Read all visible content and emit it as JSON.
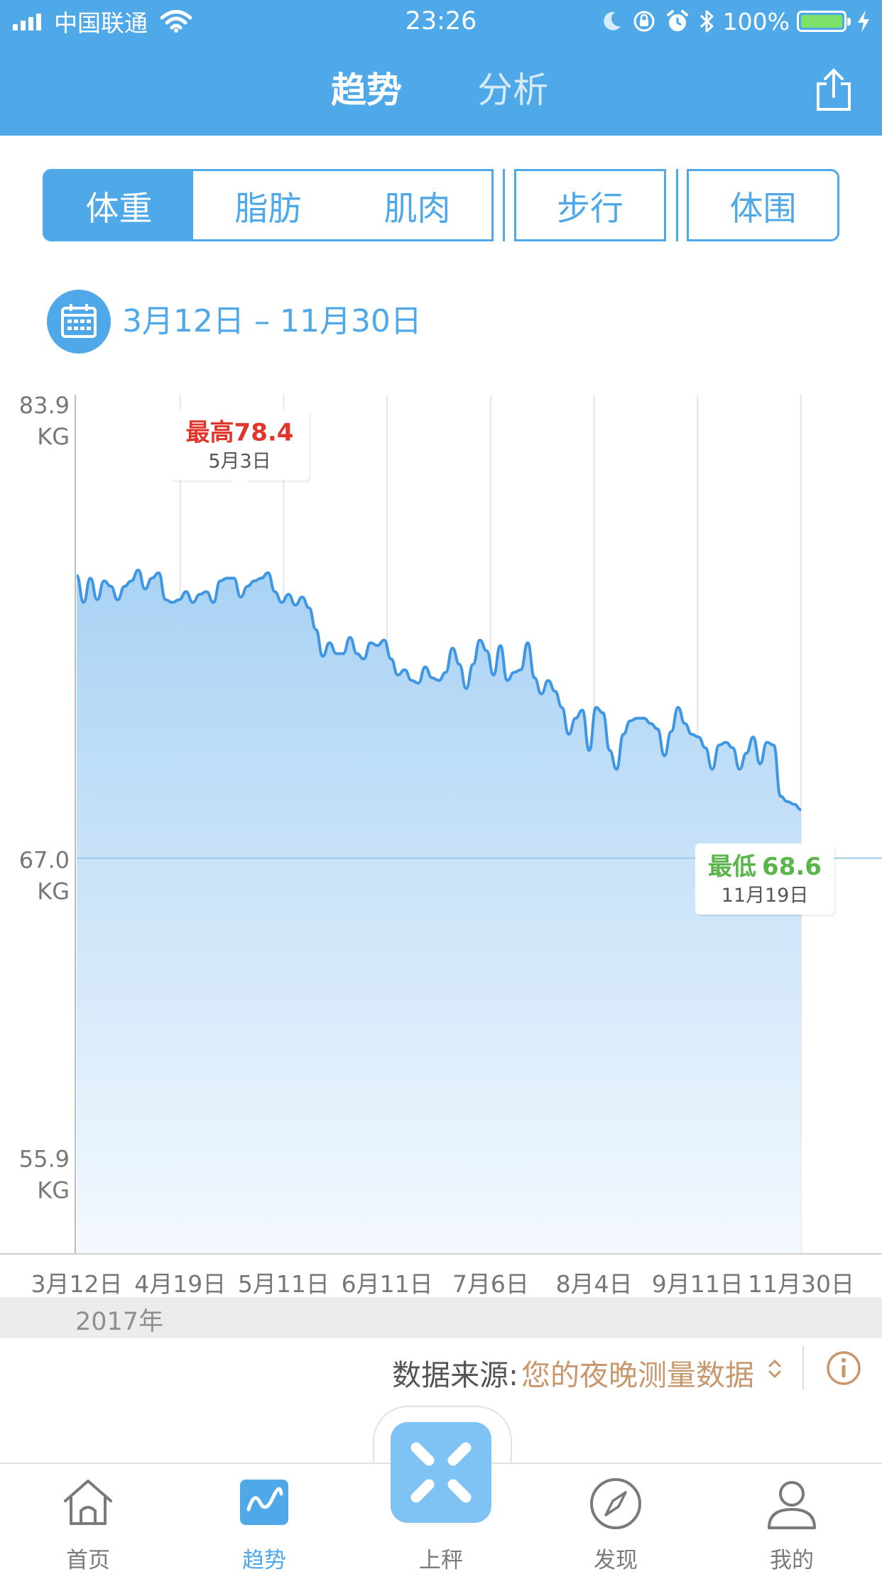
{
  "status_bar": {
    "carrier": "中国联通",
    "time": "23:26",
    "battery_pct": "100%",
    "battery_level": 1.0
  },
  "header": {
    "tabs": [
      {
        "label": "趋势",
        "active": true
      },
      {
        "label": "分析",
        "active": false
      }
    ],
    "share_icon": "share-icon"
  },
  "segments": [
    {
      "label": "体重",
      "active": true
    },
    {
      "label": "脂肪",
      "active": false
    },
    {
      "label": "肌肉",
      "active": false
    },
    {
      "label": "步行",
      "active": false
    },
    {
      "label": "体围",
      "active": false
    }
  ],
  "date_range": {
    "icon": "calendar-icon",
    "text": "3月12日 – 11月30日"
  },
  "chart_data": {
    "type": "area",
    "title": "",
    "xlabel": "",
    "ylabel": "",
    "unit": "KG",
    "y_ticks": [
      {
        "value": 83.9,
        "label": "83.9",
        "unit": "KG"
      },
      {
        "value": 67.0,
        "label": "67.0",
        "unit": "KG"
      },
      {
        "value": 55.9,
        "label": "55.9",
        "unit": "KG"
      }
    ],
    "ylim": [
      52.3,
      83.9
    ],
    "x_ticks": [
      "3月12日",
      "4月19日",
      "5月11日",
      "6月11日",
      "7月6日",
      "8月4日",
      "9月11日",
      "11月30日"
    ],
    "reference_line": 67.0,
    "grid_vertical": true,
    "line_color": "#3f97e3",
    "fill_top_color": "#a9d2f4",
    "fill_bottom_color": "#f4f9fe",
    "series": [
      {
        "values": [
          77.5,
          76.5,
          77.4,
          76.6,
          77.3,
          77.1,
          76.6,
          77.1,
          77.3,
          77.7,
          77.0,
          77.4,
          77.6,
          76.6,
          76.5,
          76.6,
          76.9,
          76.5,
          76.8,
          76.9,
          76.5,
          77.3,
          77.4,
          77.4,
          76.7,
          77.1,
          77.3,
          77.4,
          77.6,
          76.9,
          76.5,
          76.8,
          76.4,
          76.7,
          76.3,
          75.5,
          74.5,
          75.0,
          74.6,
          74.6,
          75.2,
          74.6,
          74.4,
          75.0,
          74.9,
          75.1,
          74.4,
          73.8,
          74.0,
          73.6,
          73.5,
          74.1,
          73.7,
          73.6,
          73.9,
          74.8,
          74.2,
          73.3,
          74.2,
          75.1,
          74.7,
          73.8,
          74.9,
          73.6,
          73.9,
          74.0,
          75.0,
          73.7,
          73.1,
          73.6,
          73.2,
          72.6,
          71.6,
          72.2,
          72.5,
          71.0,
          72.6,
          72.4,
          71.0,
          70.3,
          71.6,
          72.1,
          72.2,
          72.2,
          72.0,
          71.8,
          70.8,
          71.7,
          72.6,
          72.0,
          71.6,
          71.5,
          71.1,
          70.3,
          71.2,
          71.3,
          71.1,
          70.3,
          70.9,
          71.5,
          70.5,
          71.3,
          71.2,
          69.3,
          69.1,
          69.0,
          68.8
        ]
      }
    ],
    "annotations": [
      {
        "kind": "max",
        "label": "最高",
        "value": 78.4,
        "value_label": "78.4",
        "date": "5月3日",
        "x_fraction": 0.225
      },
      {
        "kind": "min",
        "label": "最低",
        "value": 68.6,
        "value_label": "68.6",
        "date": "11月19日",
        "x_fraction": 0.95
      }
    ]
  },
  "year_label": "2017年",
  "data_source": {
    "label": "数据来源:",
    "value": "您的夜晚测量数据",
    "info_icon": "info-icon"
  },
  "tabbar": [
    {
      "label": "首页",
      "icon": "home-icon",
      "active": false
    },
    {
      "label": "趋势",
      "icon": "trend-icon",
      "active": true
    },
    {
      "label": "上秤",
      "icon": "scale-icon",
      "active": false
    },
    {
      "label": "发现",
      "icon": "compass-icon",
      "active": false
    },
    {
      "label": "我的",
      "icon": "person-icon",
      "active": false
    }
  ],
  "colors": {
    "primary": "#4fa9e8",
    "max_red": "#e0362c",
    "min_green": "#5ab54a",
    "source_value": "#c8976c"
  }
}
